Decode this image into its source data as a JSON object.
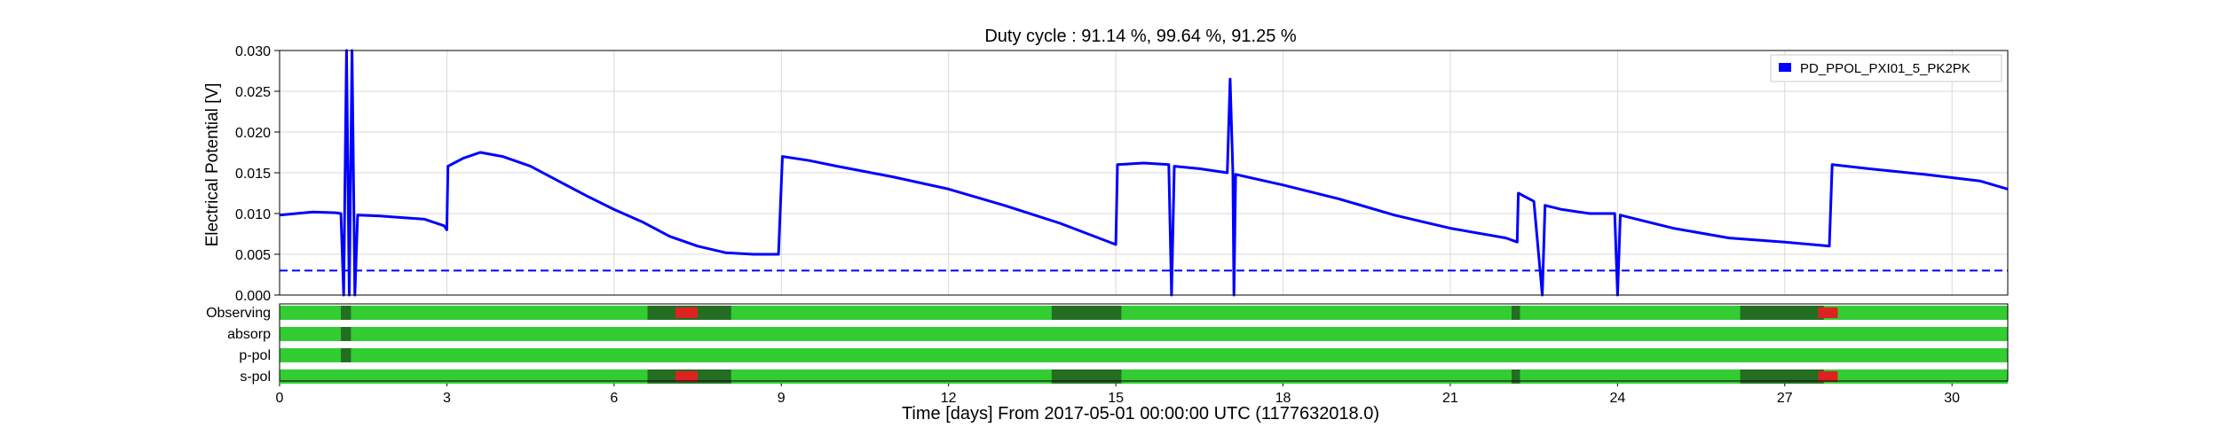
{
  "chart_data": {
    "type": "line",
    "title": "Duty cycle : 91.14 %, 99.64 %, 91.25 %",
    "xlabel": "Time [days] From 2017-05-01 00:00:00 UTC (1177632018.0)",
    "ylabel": "Electrical Potential [V]",
    "xlim": [
      0,
      31
    ],
    "ylim": [
      0,
      0.03
    ],
    "xticks": [
      0,
      3,
      6,
      9,
      12,
      15,
      18,
      21,
      24,
      27,
      30
    ],
    "yticks": [
      0.0,
      0.005,
      0.01,
      0.015,
      0.02,
      0.025,
      0.03
    ],
    "ytick_labels": [
      "0.000",
      "0.005",
      "0.010",
      "0.015",
      "0.020",
      "0.025",
      "0.030"
    ],
    "grid": true,
    "legend_position": "top-right",
    "series": [
      {
        "name": "PD_PPOL_PXI01_5_PK2PK",
        "color": "#0000ff",
        "points": [
          [
            0.0,
            0.0098
          ],
          [
            0.3,
            0.01
          ],
          [
            0.6,
            0.0102
          ],
          [
            1.0,
            0.0101
          ],
          [
            1.1,
            0.01
          ],
          [
            1.15,
            0.0
          ],
          [
            1.2,
            0.03
          ],
          [
            1.25,
            0.0
          ],
          [
            1.3,
            0.03
          ],
          [
            1.35,
            0.0
          ],
          [
            1.4,
            0.0098
          ],
          [
            1.8,
            0.0097
          ],
          [
            2.2,
            0.0095
          ],
          [
            2.6,
            0.0093
          ],
          [
            2.95,
            0.0085
          ],
          [
            3.0,
            0.008
          ],
          [
            3.02,
            0.0158
          ],
          [
            3.3,
            0.0168
          ],
          [
            3.6,
            0.0175
          ],
          [
            4.0,
            0.017
          ],
          [
            4.5,
            0.0158
          ],
          [
            5.0,
            0.014
          ],
          [
            5.5,
            0.0122
          ],
          [
            6.0,
            0.0105
          ],
          [
            6.5,
            0.009
          ],
          [
            7.0,
            0.0072
          ],
          [
            7.5,
            0.006
          ],
          [
            8.0,
            0.0052
          ],
          [
            8.5,
            0.005
          ],
          [
            8.95,
            0.005
          ],
          [
            9.02,
            0.017
          ],
          [
            9.5,
            0.0165
          ],
          [
            10.0,
            0.0158
          ],
          [
            11.0,
            0.0145
          ],
          [
            12.0,
            0.013
          ],
          [
            13.0,
            0.011
          ],
          [
            14.0,
            0.0088
          ],
          [
            14.5,
            0.0075
          ],
          [
            15.0,
            0.0062
          ],
          [
            15.03,
            0.016
          ],
          [
            15.5,
            0.0162
          ],
          [
            15.95,
            0.016
          ],
          [
            16.0,
            0.0
          ],
          [
            16.05,
            0.0158
          ],
          [
            16.5,
            0.0155
          ],
          [
            17.0,
            0.015
          ],
          [
            17.05,
            0.0265
          ],
          [
            17.1,
            0.015
          ],
          [
            17.12,
            0.0
          ],
          [
            17.15,
            0.0148
          ],
          [
            18.0,
            0.0135
          ],
          [
            19.0,
            0.0118
          ],
          [
            20.0,
            0.0098
          ],
          [
            21.0,
            0.0082
          ],
          [
            22.0,
            0.007
          ],
          [
            22.2,
            0.0065
          ],
          [
            22.22,
            0.0125
          ],
          [
            22.5,
            0.0115
          ],
          [
            22.65,
            0.0
          ],
          [
            22.7,
            0.011
          ],
          [
            23.0,
            0.0105
          ],
          [
            23.5,
            0.01
          ],
          [
            23.95,
            0.01
          ],
          [
            24.0,
            0.0
          ],
          [
            24.05,
            0.0098
          ],
          [
            25.0,
            0.0082
          ],
          [
            26.0,
            0.007
          ],
          [
            27.0,
            0.0065
          ],
          [
            27.8,
            0.006
          ],
          [
            27.85,
            0.016
          ],
          [
            28.5,
            0.0155
          ],
          [
            29.5,
            0.0148
          ],
          [
            30.5,
            0.014
          ],
          [
            31.0,
            0.013
          ]
        ]
      }
    ],
    "threshold": {
      "y": 0.003,
      "color": "#0000ff",
      "style": "dashed"
    },
    "segment_rows": {
      "labels": [
        "Observing",
        "absorp",
        "p-pol",
        "s-pol"
      ],
      "colors": {
        "active": "#33cc33",
        "known": "#236e23",
        "flag": "#dd2222"
      },
      "known_intervals": {
        "Observing": [
          [
            1.1,
            1.28
          ],
          [
            6.6,
            8.1
          ],
          [
            13.85,
            15.1
          ],
          [
            22.1,
            22.25
          ],
          [
            26.2,
            27.7
          ]
        ],
        "absorp": [
          [
            1.1,
            1.28
          ]
        ],
        "p-pol": [
          [
            1.1,
            1.28
          ]
        ],
        "s-pol": [
          [
            6.6,
            8.1
          ],
          [
            13.85,
            15.1
          ],
          [
            22.1,
            22.25
          ],
          [
            26.2,
            27.7
          ]
        ]
      },
      "flag_intervals": {
        "Observing": [
          [
            7.1,
            7.5
          ],
          [
            27.6,
            27.95
          ]
        ],
        "absorp": [],
        "p-pol": [],
        "s-pol": [
          [
            7.1,
            7.5
          ],
          [
            27.6,
            27.95
          ]
        ]
      }
    }
  }
}
